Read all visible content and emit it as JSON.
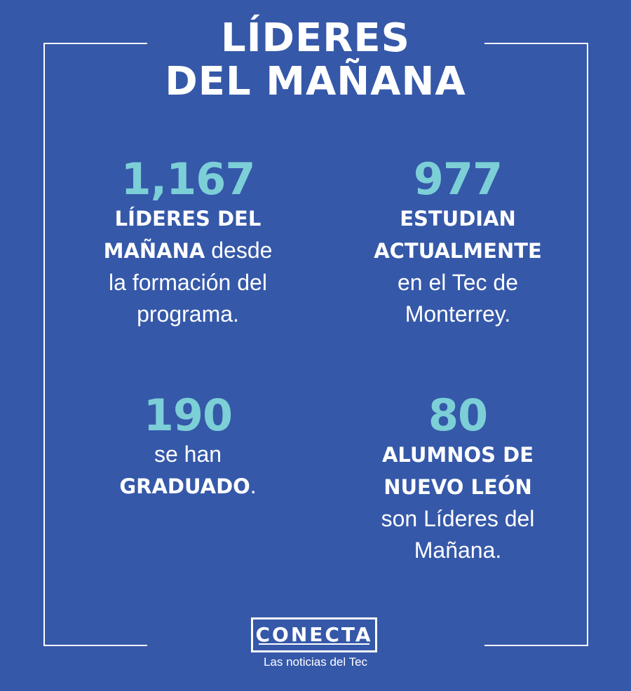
{
  "title": {
    "line1": "LÍDERES",
    "line2": "DEL MAÑANA"
  },
  "stats": [
    {
      "number": "1,167",
      "bold_text": "LÍDERES DEL",
      "bold_text_2": "MAÑANA",
      "rest_inline": " desde",
      "line3": "la formación del",
      "line4": "programa."
    },
    {
      "number": "977",
      "bold_text": "ESTUDIAN",
      "bold_text_2": "ACTUALMENTE",
      "line3": "en el Tec de",
      "line4": "Monterrey."
    },
    {
      "number": "190",
      "line1": "se han",
      "bold_text": "GRADUADO",
      "tail": "."
    },
    {
      "number": "80",
      "bold_text": "ALUMNOS DE",
      "bold_text_2": "NUEVO LEÓN",
      "line3": "son Líderes del",
      "line4": "Mañana."
    }
  ],
  "logo": {
    "name": "CONECTA",
    "tagline": "Las noticias del Tec"
  },
  "colors": {
    "background": "#3558a9",
    "accent": "#7ccfd6",
    "text": "#ffffff"
  }
}
